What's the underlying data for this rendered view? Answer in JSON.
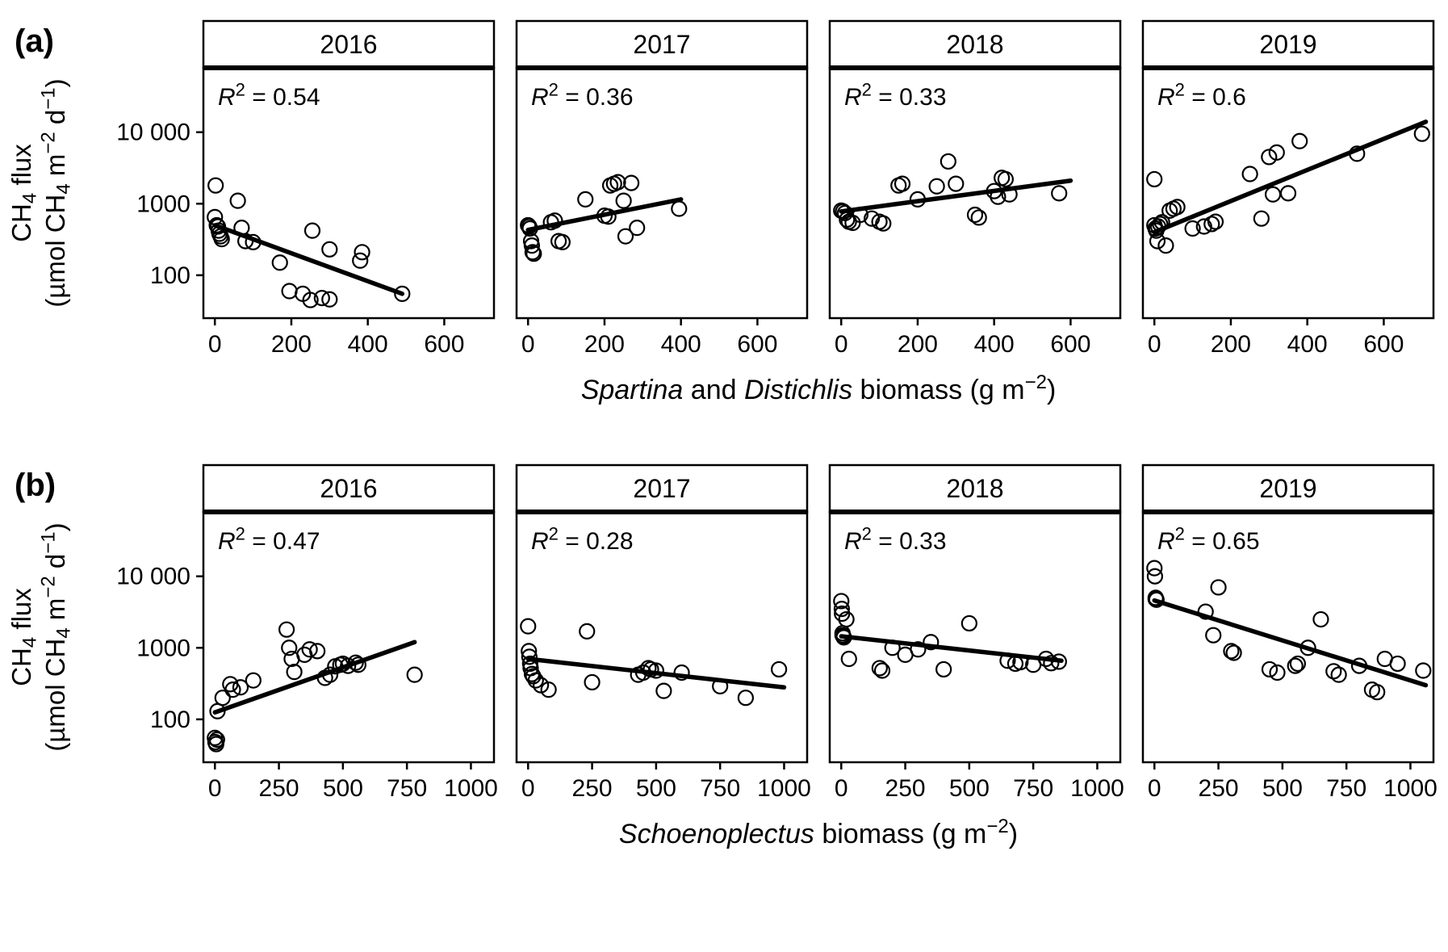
{
  "figure": {
    "background": "#ffffff",
    "foreground": "#000000"
  },
  "chart_data": [
    {
      "type": "scatter",
      "row_label": "(a)",
      "facet_years": [
        "2016",
        "2017",
        "2018",
        "2019"
      ],
      "x_axis": {
        "title_segments": [
          {
            "t": "Spartina",
            "i": true
          },
          {
            "t": " and "
          },
          {
            "t": "Distichlis",
            "i": true
          },
          {
            "t": " biomass (g m"
          },
          {
            "t": "−2",
            "sup": true
          },
          {
            "t": ")"
          }
        ],
        "ticks": [
          0,
          200,
          400,
          600
        ],
        "domain": [
          -30,
          730
        ]
      },
      "y_axis": {
        "title_line1_segments": [
          {
            "t": "CH"
          },
          {
            "t": "4",
            "sub": true
          },
          {
            "t": " flux"
          }
        ],
        "title_line2_segments": [
          {
            "t": "(µmol CH"
          },
          {
            "t": "4",
            "sub": true
          },
          {
            "t": " m"
          },
          {
            "t": "−2",
            "sup": true
          },
          {
            "t": " d"
          },
          {
            "t": "−1",
            "sup": true
          },
          {
            "t": ")"
          }
        ],
        "ticks": [
          {
            "v": 100,
            "label": "100"
          },
          {
            "v": 1000,
            "label": "1000"
          },
          {
            "v": 10000,
            "label": "10 000"
          }
        ],
        "log_domain": [
          1.4,
          4.9
        ]
      },
      "panels": [
        {
          "year": "2016",
          "r2": "0.54",
          "fit": {
            "x": [
              0,
              490
            ],
            "y": [
              500,
              55
            ]
          },
          "points": [
            [
              0,
              650
            ],
            [
              2,
              1800
            ],
            [
              5,
              500
            ],
            [
              8,
              480
            ],
            [
              10,
              420
            ],
            [
              12,
              380
            ],
            [
              15,
              350
            ],
            [
              18,
              320
            ],
            [
              60,
              1100
            ],
            [
              70,
              460
            ],
            [
              80,
              300
            ],
            [
              100,
              290
            ],
            [
              170,
              150
            ],
            [
              195,
              60
            ],
            [
              230,
              55
            ],
            [
              250,
              45
            ],
            [
              280,
              48
            ],
            [
              300,
              46
            ],
            [
              255,
              420
            ],
            [
              300,
              230
            ],
            [
              385,
              210
            ],
            [
              380,
              160
            ],
            [
              490,
              55
            ]
          ]
        },
        {
          "year": "2017",
          "r2": "0.36",
          "fit": {
            "x": [
              0,
              400
            ],
            "y": [
              430,
              1150
            ]
          },
          "points": [
            [
              0,
              500
            ],
            [
              3,
              480
            ],
            [
              5,
              450
            ],
            [
              8,
              300
            ],
            [
              10,
              260
            ],
            [
              12,
              210
            ],
            [
              15,
              200
            ],
            [
              60,
              550
            ],
            [
              70,
              580
            ],
            [
              80,
              300
            ],
            [
              90,
              290
            ],
            [
              150,
              1150
            ],
            [
              200,
              680
            ],
            [
              210,
              660
            ],
            [
              215,
              1800
            ],
            [
              225,
              1900
            ],
            [
              235,
              2000
            ],
            [
              250,
              1100
            ],
            [
              255,
              350
            ],
            [
              270,
              1950
            ],
            [
              285,
              460
            ],
            [
              395,
              850
            ]
          ]
        },
        {
          "year": "2018",
          "r2": "0.33",
          "fit": {
            "x": [
              0,
              600
            ],
            "y": [
              780,
              2100
            ]
          },
          "points": [
            [
              0,
              800
            ],
            [
              5,
              780
            ],
            [
              10,
              740
            ],
            [
              15,
              600
            ],
            [
              20,
              560
            ],
            [
              30,
              540
            ],
            [
              50,
              700
            ],
            [
              80,
              620
            ],
            [
              100,
              560
            ],
            [
              110,
              530
            ],
            [
              150,
              1800
            ],
            [
              160,
              1900
            ],
            [
              200,
              1150
            ],
            [
              250,
              1750
            ],
            [
              280,
              3900
            ],
            [
              300,
              1900
            ],
            [
              350,
              700
            ],
            [
              360,
              640
            ],
            [
              400,
              1500
            ],
            [
              410,
              1250
            ],
            [
              420,
              2300
            ],
            [
              430,
              2200
            ],
            [
              440,
              1350
            ],
            [
              570,
              1400
            ]
          ]
        },
        {
          "year": "2019",
          "r2": "0.6",
          "fit": {
            "x": [
              0,
              710
            ],
            "y": [
              400,
              14000
            ]
          },
          "points": [
            [
              0,
              2200
            ],
            [
              0,
              500
            ],
            [
              3,
              450
            ],
            [
              5,
              420
            ],
            [
              8,
              300
            ],
            [
              10,
              480
            ],
            [
              15,
              520
            ],
            [
              20,
              550
            ],
            [
              30,
              260
            ],
            [
              40,
              800
            ],
            [
              50,
              850
            ],
            [
              60,
              900
            ],
            [
              100,
              450
            ],
            [
              130,
              480
            ],
            [
              150,
              520
            ],
            [
              160,
              560
            ],
            [
              250,
              2600
            ],
            [
              280,
              620
            ],
            [
              300,
              4500
            ],
            [
              310,
              1350
            ],
            [
              320,
              5200
            ],
            [
              350,
              1400
            ],
            [
              380,
              7500
            ],
            [
              530,
              5000
            ],
            [
              700,
              9500
            ]
          ]
        }
      ]
    },
    {
      "type": "scatter",
      "row_label": "(b)",
      "facet_years": [
        "2016",
        "2017",
        "2018",
        "2019"
      ],
      "x_axis": {
        "title_segments": [
          {
            "t": "Schoenoplectus",
            "i": true
          },
          {
            "t": " biomass (g m"
          },
          {
            "t": "−2",
            "sup": true
          },
          {
            "t": ")"
          }
        ],
        "ticks": [
          0,
          250,
          500,
          750,
          1000
        ],
        "domain": [
          -45,
          1090
        ]
      },
      "y_axis": {
        "title_line1_segments": [
          {
            "t": "CH"
          },
          {
            "t": "4",
            "sub": true
          },
          {
            "t": " flux"
          }
        ],
        "title_line2_segments": [
          {
            "t": "(µmol CH"
          },
          {
            "t": "4",
            "sub": true
          },
          {
            "t": " m"
          },
          {
            "t": "−2",
            "sup": true
          },
          {
            "t": " d"
          },
          {
            "t": "−1",
            "sup": true
          },
          {
            "t": ")"
          }
        ],
        "ticks": [
          {
            "v": 100,
            "label": "100"
          },
          {
            "v": 1000,
            "label": "1000"
          },
          {
            "v": 10000,
            "label": "10 000"
          }
        ],
        "log_domain": [
          1.4,
          4.9
        ]
      },
      "panels": [
        {
          "year": "2016",
          "r2": "0.47",
          "fit": {
            "x": [
              0,
              780
            ],
            "y": [
              125,
              1200
            ]
          },
          "points": [
            [
              0,
              55
            ],
            [
              2,
              48
            ],
            [
              5,
              45
            ],
            [
              8,
              52
            ],
            [
              10,
              130
            ],
            [
              30,
              200
            ],
            [
              60,
              310
            ],
            [
              70,
              260
            ],
            [
              100,
              280
            ],
            [
              150,
              350
            ],
            [
              280,
              1800
            ],
            [
              290,
              1000
            ],
            [
              300,
              700
            ],
            [
              310,
              460
            ],
            [
              350,
              800
            ],
            [
              370,
              950
            ],
            [
              400,
              900
            ],
            [
              430,
              380
            ],
            [
              450,
              420
            ],
            [
              470,
              550
            ],
            [
              490,
              580
            ],
            [
              500,
              600
            ],
            [
              520,
              560
            ],
            [
              550,
              620
            ],
            [
              560,
              580
            ],
            [
              780,
              420
            ]
          ]
        },
        {
          "year": "2017",
          "r2": "0.28",
          "fit": {
            "x": [
              0,
              1000
            ],
            "y": [
              700,
              280
            ]
          },
          "points": [
            [
              0,
              2000
            ],
            [
              3,
              900
            ],
            [
              5,
              750
            ],
            [
              8,
              600
            ],
            [
              10,
              520
            ],
            [
              15,
              430
            ],
            [
              20,
              400
            ],
            [
              30,
              350
            ],
            [
              50,
              300
            ],
            [
              80,
              260
            ],
            [
              230,
              1700
            ],
            [
              250,
              330
            ],
            [
              430,
              420
            ],
            [
              450,
              450
            ],
            [
              470,
              520
            ],
            [
              480,
              500
            ],
            [
              500,
              480
            ],
            [
              530,
              250
            ],
            [
              600,
              450
            ],
            [
              750,
              290
            ],
            [
              850,
              200
            ],
            [
              980,
              500
            ]
          ]
        },
        {
          "year": "2018",
          "r2": "0.33",
          "fit": {
            "x": [
              0,
              860
            ],
            "y": [
              1450,
              660
            ]
          },
          "points": [
            [
              0,
              4500
            ],
            [
              2,
              3500
            ],
            [
              3,
              3000
            ],
            [
              5,
              1600
            ],
            [
              5,
              1500
            ],
            [
              8,
              1450
            ],
            [
              10,
              1400
            ],
            [
              20,
              2500
            ],
            [
              30,
              700
            ],
            [
              150,
              520
            ],
            [
              160,
              480
            ],
            [
              200,
              1000
            ],
            [
              250,
              800
            ],
            [
              300,
              950
            ],
            [
              350,
              1200
            ],
            [
              400,
              500
            ],
            [
              500,
              2200
            ],
            [
              650,
              660
            ],
            [
              680,
              600
            ],
            [
              700,
              630
            ],
            [
              750,
              580
            ],
            [
              800,
              700
            ],
            [
              820,
              610
            ],
            [
              850,
              640
            ]
          ]
        },
        {
          "year": "2019",
          "r2": "0.65",
          "fit": {
            "x": [
              0,
              1060
            ],
            "y": [
              4600,
              300
            ]
          },
          "points": [
            [
              0,
              13000
            ],
            [
              2,
              10000
            ],
            [
              5,
              5000
            ],
            [
              5,
              4800
            ],
            [
              8,
              4700
            ],
            [
              200,
              3200
            ],
            [
              230,
              1500
            ],
            [
              250,
              7000
            ],
            [
              300,
              900
            ],
            [
              310,
              850
            ],
            [
              450,
              500
            ],
            [
              480,
              450
            ],
            [
              550,
              560
            ],
            [
              560,
              600
            ],
            [
              600,
              1000
            ],
            [
              650,
              2500
            ],
            [
              700,
              470
            ],
            [
              720,
              420
            ],
            [
              800,
              560
            ],
            [
              850,
              260
            ],
            [
              870,
              240
            ],
            [
              900,
              700
            ],
            [
              950,
              600
            ],
            [
              1050,
              480
            ]
          ]
        }
      ]
    }
  ]
}
